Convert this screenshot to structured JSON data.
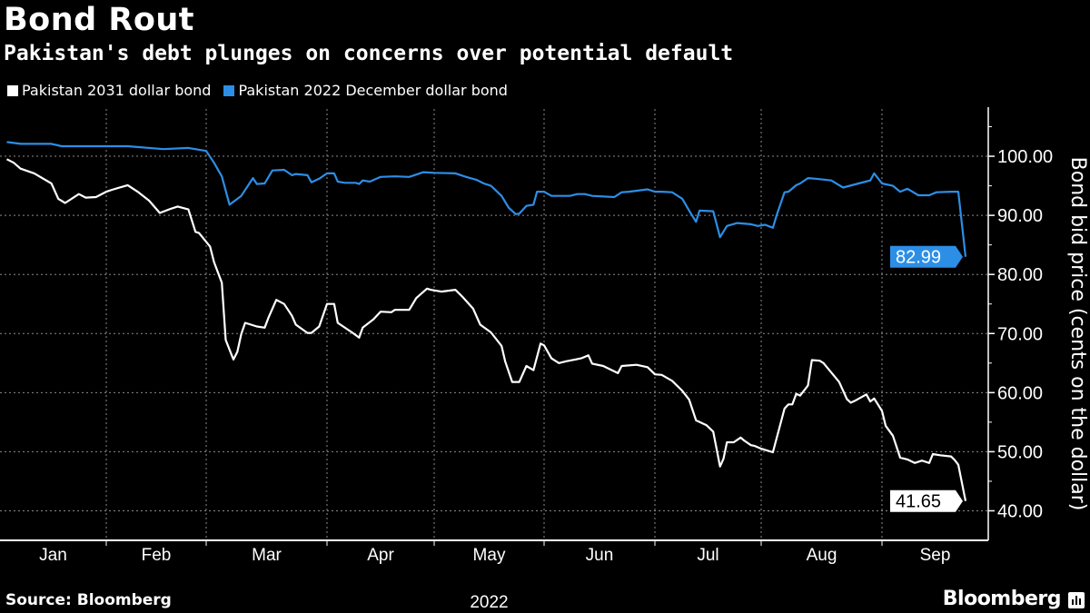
{
  "header": {
    "title": "Bond Rout",
    "subtitle": "Pakistan's debt plunges on concerns over potential default"
  },
  "footer": {
    "source": "Source: Bloomberg",
    "brand": "Bloomberg",
    "brand_icon": "bloomberg-chart-icon"
  },
  "chart_data": {
    "type": "line",
    "title": "Bond Rout",
    "subtitle": "Pakistan's debt plunges on concerns over potential default",
    "ylabel": "Bond bid price (cents on the dollar)",
    "y_axis_side": "right",
    "ylim": [
      35,
      108
    ],
    "yticks": [
      40,
      50,
      60,
      70,
      80,
      90,
      100
    ],
    "ytick_labels": [
      "40.00",
      "50.00",
      "60.00",
      "70.00",
      "80.00",
      "90.00",
      "100.00"
    ],
    "xtick_labels": [
      "Jan",
      "Feb",
      "Mar",
      "Apr",
      "May",
      "Jun",
      "Jul",
      "Aug",
      "Sep"
    ],
    "x_year_label": "2022",
    "grid": true,
    "legend_placement": "top-left",
    "series": [
      {
        "name": "Pakistan 2031 dollar bond",
        "color": "#ffffff",
        "last_value_label": "41.65",
        "points": [
          [
            "2022-01-03",
            99.5
          ],
          [
            "2022-01-05",
            98.9
          ],
          [
            "2022-01-07",
            97.9
          ],
          [
            "2022-01-11",
            97.1
          ],
          [
            "2022-01-16",
            95.4
          ],
          [
            "2022-01-18",
            92.8
          ],
          [
            "2022-01-20",
            92.1
          ],
          [
            "2022-01-24",
            93.6
          ],
          [
            "2022-01-26",
            93.0
          ],
          [
            "2022-01-29",
            93.1
          ],
          [
            "2022-02-01",
            94.0
          ],
          [
            "2022-02-03",
            94.4
          ],
          [
            "2022-02-07",
            95.1
          ],
          [
            "2022-02-10",
            93.9
          ],
          [
            "2022-02-13",
            92.5
          ],
          [
            "2022-02-16",
            90.4
          ],
          [
            "2022-02-19",
            91.1
          ],
          [
            "2022-02-21",
            91.5
          ],
          [
            "2022-02-24",
            91.0
          ],
          [
            "2022-02-26",
            87.2
          ],
          [
            "2022-02-27",
            87.0
          ],
          [
            "2022-03-02",
            84.7
          ],
          [
            "2022-03-03",
            82.1
          ],
          [
            "2022-03-05",
            78.6
          ],
          [
            "2022-03-06",
            68.9
          ],
          [
            "2022-03-08",
            65.6
          ],
          [
            "2022-03-09",
            66.9
          ],
          [
            "2022-03-10",
            69.9
          ],
          [
            "2022-03-11",
            71.8
          ],
          [
            "2022-03-14",
            71.2
          ],
          [
            "2022-03-16",
            71.0
          ],
          [
            "2022-03-17",
            72.7
          ],
          [
            "2022-03-19",
            75.7
          ],
          [
            "2022-03-21",
            75.0
          ],
          [
            "2022-03-23",
            73.0
          ],
          [
            "2022-03-24",
            71.5
          ],
          [
            "2022-03-27",
            70.1
          ],
          [
            "2022-03-28",
            70.1
          ],
          [
            "2022-03-30",
            71.2
          ],
          [
            "2022-04-01",
            75.0
          ],
          [
            "2022-04-03",
            75.0
          ],
          [
            "2022-04-04",
            71.8
          ],
          [
            "2022-04-08",
            70.2
          ],
          [
            "2022-04-10",
            69.3
          ],
          [
            "2022-04-11",
            71.0
          ],
          [
            "2022-04-14",
            72.4
          ],
          [
            "2022-04-16",
            73.7
          ],
          [
            "2022-04-19",
            73.6
          ],
          [
            "2022-04-20",
            74.0
          ],
          [
            "2022-04-24",
            74.0
          ],
          [
            "2022-04-26",
            76.0
          ],
          [
            "2022-04-29",
            77.6
          ],
          [
            "2022-04-30",
            77.4
          ],
          [
            "2022-05-03",
            77.1
          ],
          [
            "2022-05-07",
            77.4
          ],
          [
            "2022-05-09",
            76.2
          ],
          [
            "2022-05-12",
            74.2
          ],
          [
            "2022-05-14",
            71.5
          ],
          [
            "2022-05-17",
            70.2
          ],
          [
            "2022-05-20",
            67.9
          ],
          [
            "2022-05-21",
            65.3
          ],
          [
            "2022-05-23",
            61.8
          ],
          [
            "2022-05-25",
            61.8
          ],
          [
            "2022-05-27",
            64.5
          ],
          [
            "2022-05-29",
            63.8
          ],
          [
            "2022-05-31",
            68.3
          ],
          [
            "2022-06-01",
            68.0
          ],
          [
            "2022-06-03",
            65.8
          ],
          [
            "2022-06-05",
            65.0
          ],
          [
            "2022-06-07",
            65.3
          ],
          [
            "2022-06-11",
            65.8
          ],
          [
            "2022-06-13",
            66.3
          ],
          [
            "2022-06-14",
            64.9
          ],
          [
            "2022-06-17",
            64.5
          ],
          [
            "2022-06-21",
            63.3
          ],
          [
            "2022-06-22",
            64.5
          ],
          [
            "2022-06-26",
            64.7
          ],
          [
            "2022-06-29",
            64.3
          ],
          [
            "2022-07-01",
            63.1
          ],
          [
            "2022-07-03",
            63.0
          ],
          [
            "2022-07-06",
            62.0
          ],
          [
            "2022-07-09",
            60.3
          ],
          [
            "2022-07-11",
            58.8
          ],
          [
            "2022-07-13",
            55.3
          ],
          [
            "2022-07-16",
            54.5
          ],
          [
            "2022-07-18",
            53.4
          ],
          [
            "2022-07-20",
            47.5
          ],
          [
            "2022-07-21",
            48.8
          ],
          [
            "2022-07-22",
            51.6
          ],
          [
            "2022-07-24",
            51.6
          ],
          [
            "2022-07-26",
            52.4
          ],
          [
            "2022-07-27",
            51.9
          ],
          [
            "2022-07-29",
            51.1
          ],
          [
            "2022-07-30",
            51.0
          ],
          [
            "2022-08-01",
            50.5
          ],
          [
            "2022-08-04",
            49.9
          ],
          [
            "2022-08-07",
            57.3
          ],
          [
            "2022-08-08",
            58.0
          ],
          [
            "2022-08-09",
            58.0
          ],
          [
            "2022-08-10",
            59.8
          ],
          [
            "2022-08-11",
            59.5
          ],
          [
            "2022-08-13",
            61.2
          ],
          [
            "2022-08-14",
            65.5
          ],
          [
            "2022-08-16",
            65.4
          ],
          [
            "2022-08-17",
            65.0
          ],
          [
            "2022-08-19",
            63.4
          ],
          [
            "2022-08-21",
            61.8
          ],
          [
            "2022-08-23",
            58.9
          ],
          [
            "2022-08-24",
            58.3
          ],
          [
            "2022-08-25",
            58.6
          ],
          [
            "2022-08-28",
            59.7
          ],
          [
            "2022-08-29",
            58.5
          ],
          [
            "2022-08-30",
            59.0
          ],
          [
            "2022-09-01",
            56.9
          ],
          [
            "2022-09-02",
            54.4
          ],
          [
            "2022-09-04",
            52.7
          ],
          [
            "2022-09-06",
            49.0
          ],
          [
            "2022-09-08",
            48.7
          ],
          [
            "2022-09-10",
            48.1
          ],
          [
            "2022-09-12",
            48.5
          ],
          [
            "2022-09-14",
            48.1
          ],
          [
            "2022-09-15",
            49.6
          ],
          [
            "2022-09-17",
            49.4
          ],
          [
            "2022-09-20",
            49.2
          ],
          [
            "2022-09-21",
            48.6
          ],
          [
            "2022-09-22",
            47.8
          ],
          [
            "2022-09-24",
            41.65
          ]
        ]
      },
      {
        "name": "Pakistan 2022 December dollar bond",
        "color": "#2d8ee6",
        "last_value_label": "82.99",
        "points": [
          [
            "2022-01-03",
            102.4
          ],
          [
            "2022-01-07",
            102.1
          ],
          [
            "2022-01-16",
            102.1
          ],
          [
            "2022-01-19",
            101.7
          ],
          [
            "2022-02-07",
            101.7
          ],
          [
            "2022-02-17",
            101.2
          ],
          [
            "2022-02-24",
            101.4
          ],
          [
            "2022-03-01",
            100.9
          ],
          [
            "2022-03-03",
            98.9
          ],
          [
            "2022-03-05",
            96.6
          ],
          [
            "2022-03-07",
            91.8
          ],
          [
            "2022-03-10",
            93.3
          ],
          [
            "2022-03-13",
            96.3
          ],
          [
            "2022-03-14",
            95.3
          ],
          [
            "2022-03-16",
            95.4
          ],
          [
            "2022-03-18",
            97.6
          ],
          [
            "2022-03-21",
            97.7
          ],
          [
            "2022-03-23",
            96.8
          ],
          [
            "2022-03-24",
            97.0
          ],
          [
            "2022-03-27",
            96.8
          ],
          [
            "2022-03-28",
            95.6
          ],
          [
            "2022-03-30",
            96.2
          ],
          [
            "2022-04-01",
            97.1
          ],
          [
            "2022-04-03",
            97.1
          ],
          [
            "2022-04-04",
            95.7
          ],
          [
            "2022-04-06",
            95.5
          ],
          [
            "2022-04-09",
            95.5
          ],
          [
            "2022-04-10",
            95.3
          ],
          [
            "2022-04-11",
            95.9
          ],
          [
            "2022-04-13",
            95.7
          ],
          [
            "2022-04-16",
            96.5
          ],
          [
            "2022-04-20",
            96.6
          ],
          [
            "2022-04-24",
            96.5
          ],
          [
            "2022-04-28",
            97.3
          ],
          [
            "2022-05-01",
            97.2
          ],
          [
            "2022-05-07",
            97.1
          ],
          [
            "2022-05-10",
            96.5
          ],
          [
            "2022-05-13",
            96.0
          ],
          [
            "2022-05-15",
            95.4
          ],
          [
            "2022-05-17",
            95.0
          ],
          [
            "2022-05-20",
            93.3
          ],
          [
            "2022-05-22",
            91.3
          ],
          [
            "2022-05-24",
            90.2
          ],
          [
            "2022-05-25",
            90.3
          ],
          [
            "2022-05-27",
            91.6
          ],
          [
            "2022-05-29",
            91.8
          ],
          [
            "2022-05-30",
            94.0
          ],
          [
            "2022-06-01",
            94.0
          ],
          [
            "2022-06-03",
            93.3
          ],
          [
            "2022-06-08",
            93.3
          ],
          [
            "2022-06-10",
            93.6
          ],
          [
            "2022-06-12",
            93.6
          ],
          [
            "2022-06-14",
            93.3
          ],
          [
            "2022-06-20",
            93.1
          ],
          [
            "2022-06-22",
            93.9
          ],
          [
            "2022-06-24",
            94.0
          ],
          [
            "2022-06-29",
            94.4
          ],
          [
            "2022-07-01",
            94.0
          ],
          [
            "2022-07-03",
            94.0
          ],
          [
            "2022-07-06",
            93.9
          ],
          [
            "2022-07-09",
            92.8
          ],
          [
            "2022-07-11",
            90.8
          ],
          [
            "2022-07-13",
            88.9
          ],
          [
            "2022-07-14",
            90.8
          ],
          [
            "2022-07-18",
            90.7
          ],
          [
            "2022-07-20",
            86.3
          ],
          [
            "2022-07-22",
            88.2
          ],
          [
            "2022-07-25",
            88.7
          ],
          [
            "2022-07-29",
            88.5
          ],
          [
            "2022-07-31",
            88.2
          ],
          [
            "2022-08-02",
            88.4
          ],
          [
            "2022-08-04",
            87.9
          ],
          [
            "2022-08-05",
            90.1
          ],
          [
            "2022-08-07",
            93.9
          ],
          [
            "2022-08-08",
            94.0
          ],
          [
            "2022-08-10",
            95.1
          ],
          [
            "2022-08-11",
            95.4
          ],
          [
            "2022-08-13",
            96.3
          ],
          [
            "2022-08-15",
            96.2
          ],
          [
            "2022-08-19",
            95.9
          ],
          [
            "2022-08-22",
            94.7
          ],
          [
            "2022-08-26",
            95.4
          ],
          [
            "2022-08-29",
            95.9
          ],
          [
            "2022-08-30",
            97.1
          ],
          [
            "2022-09-01",
            95.4
          ],
          [
            "2022-09-04",
            95.0
          ],
          [
            "2022-09-06",
            94.0
          ],
          [
            "2022-09-08",
            94.5
          ],
          [
            "2022-09-11",
            93.4
          ],
          [
            "2022-09-14",
            93.4
          ],
          [
            "2022-09-16",
            93.9
          ],
          [
            "2022-09-20",
            94.0
          ],
          [
            "2022-09-22",
            94.0
          ],
          [
            "2022-09-24",
            82.99
          ]
        ]
      }
    ]
  }
}
